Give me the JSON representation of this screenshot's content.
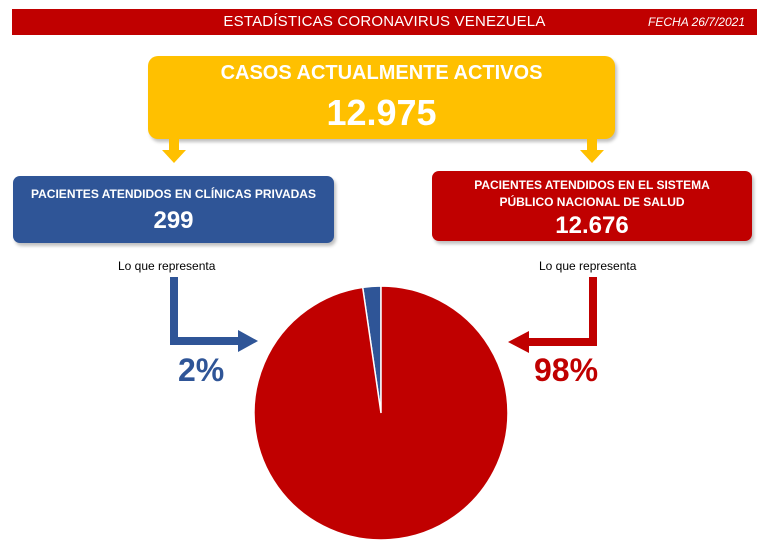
{
  "header": {
    "title": "ESTADÍSTICAS CORONAVIRUS VENEZUELA",
    "date": "FECHA 26/7/2021"
  },
  "total": {
    "label": "CASOS ACTUALMENTE ACTIVOS",
    "value": "12.975"
  },
  "private": {
    "label": "PACIENTES ATENDIDOS EN CLÍNICAS PRIVADAS",
    "value": "299",
    "caption": "Lo que representa",
    "percent": "2%"
  },
  "public": {
    "label": "PACIENTES ATENDIDOS EN EL SISTEMA PÚBLICO NACIONAL DE SALUD",
    "value": "12.676",
    "caption": "Lo que representa",
    "percent": "98%"
  },
  "colors": {
    "red": "#c00000",
    "blue": "#2f5597",
    "yellow": "#ffc000"
  },
  "chart_data": {
    "type": "pie",
    "categories": [
      "Clínicas privadas",
      "Sistema público nacional de salud"
    ],
    "values": [
      299,
      12676
    ],
    "colors": [
      "#2f5597",
      "#c00000"
    ]
  }
}
